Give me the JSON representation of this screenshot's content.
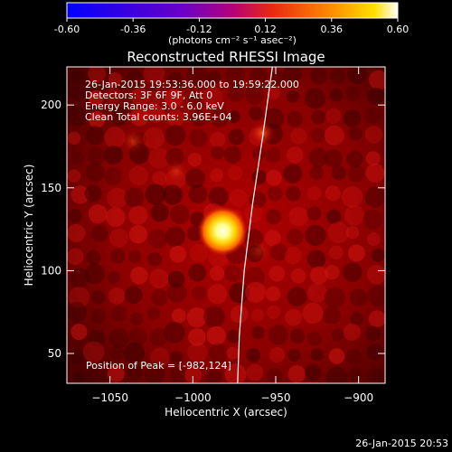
{
  "colorbar": {
    "ticks": [
      "-0.60",
      "-0.36",
      "-0.12",
      "0.12",
      "0.36",
      "0.60"
    ],
    "units": "(photons cm⁻² s⁻¹ asec⁻²)",
    "stops": [
      "#0000ff",
      "#6a00c8",
      "#a0008c",
      "#d21e1e",
      "#ff7800",
      "#ffdc00",
      "#ffffff"
    ]
  },
  "plot": {
    "title": "Reconstructed RHESSI Image",
    "info_lines": [
      "26-Jan-2015 19:53:36.000 to 19:59:22.000",
      "Detectors: 3F 6F 9F, Att 0",
      "Energy Range: 3.0 - 6.0 keV",
      "Clean    Total counts: 3.96E+04"
    ],
    "peak_text": "Position of Peak = [-982,124]",
    "xlabel": "Heliocentric X (arcsec)",
    "ylabel": "Heliocentric Y (arcsec)",
    "x_ticks": [
      {
        "value": -1050,
        "label": "-1050"
      },
      {
        "value": -1000,
        "label": "-1000"
      },
      {
        "value": -950,
        "label": "-950"
      },
      {
        "value": -900,
        "label": "-900"
      }
    ],
    "y_ticks": [
      {
        "value": 50,
        "label": "50"
      },
      {
        "value": 100,
        "label": "100"
      },
      {
        "value": 150,
        "label": "150"
      },
      {
        "value": 200,
        "label": "200"
      }
    ],
    "xlim": [
      -1076,
      -884
    ],
    "ylim": [
      32,
      223
    ],
    "peak": {
      "x": -982,
      "y": 124
    },
    "secondary_sources": [
      {
        "x": -958,
        "y": 183,
        "strength": 0.35
      },
      {
        "x": -1036,
        "y": 178,
        "strength": 0.18
      },
      {
        "x": -1010,
        "y": 160,
        "strength": 0.15
      },
      {
        "x": -960,
        "y": 112,
        "strength": 0.12
      }
    ],
    "limb_points": [
      {
        "x": -952,
        "y": 223
      },
      {
        "x": -958,
        "y": 180
      },
      {
        "x": -964,
        "y": 140
      },
      {
        "x": -969,
        "y": 100
      },
      {
        "x": -972,
        "y": 60
      },
      {
        "x": -973,
        "y": 32
      }
    ]
  },
  "footer": {
    "timestamp": "26-Jan-2015 20:53"
  }
}
